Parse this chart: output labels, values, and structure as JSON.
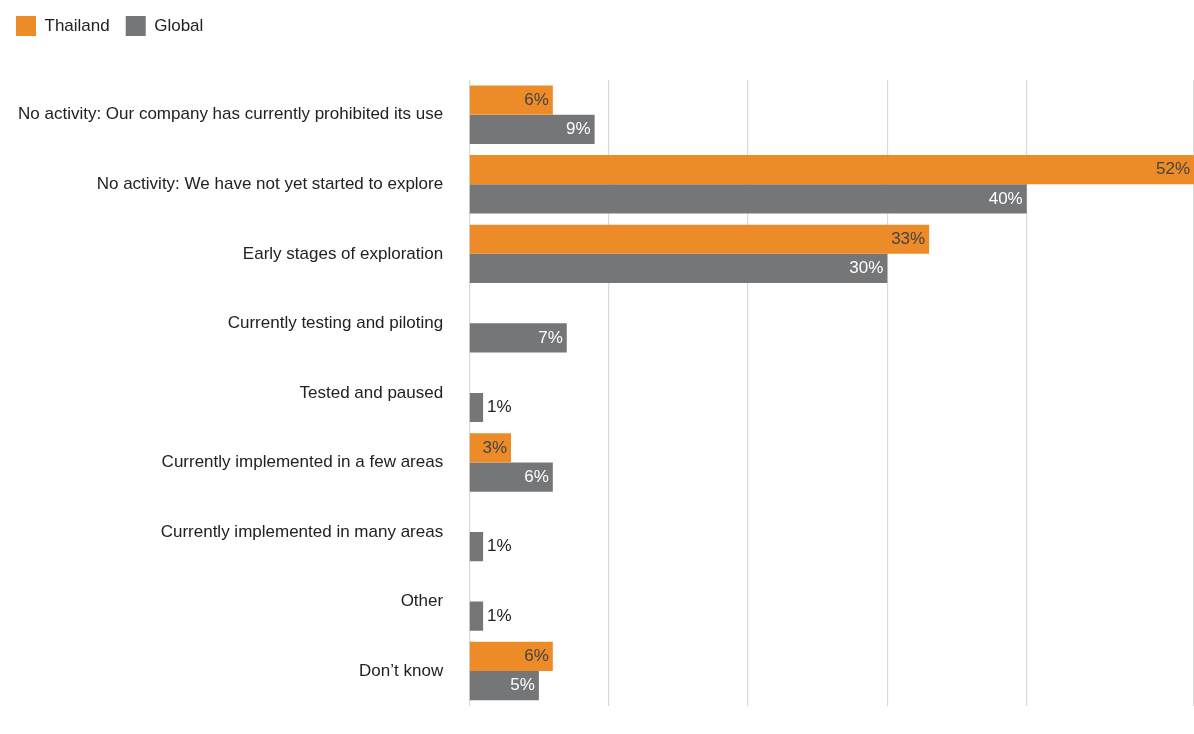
{
  "chart_data": {
    "type": "bar",
    "orientation": "horizontal",
    "categories": [
      "No activity: Our company has currently prohibited its use",
      "No activity: We have not yet started to explore",
      "Early stages of exploration",
      "Currently testing and piloting",
      "Tested and paused",
      "Currently implemented in a few areas",
      "Currently implemented in many areas",
      "Other",
      "Don’t know"
    ],
    "series": [
      {
        "name": "Thailand",
        "color": "#ed8b28",
        "values": [
          6,
          52,
          33,
          null,
          null,
          3,
          null,
          null,
          6
        ],
        "value_labels": [
          "6%",
          "52%",
          "33%",
          null,
          null,
          "3%",
          null,
          null,
          "6%"
        ]
      },
      {
        "name": "Global",
        "color": "#747678",
        "values": [
          9,
          40,
          30,
          7,
          1,
          6,
          1,
          1,
          5
        ],
        "value_labels": [
          "9%",
          "40%",
          "30%",
          "7%",
          "1%",
          "6%",
          "1%",
          "1%",
          "5%"
        ]
      }
    ],
    "grid": "x",
    "legend": "top left",
    "tick_labels": "y"
  }
}
